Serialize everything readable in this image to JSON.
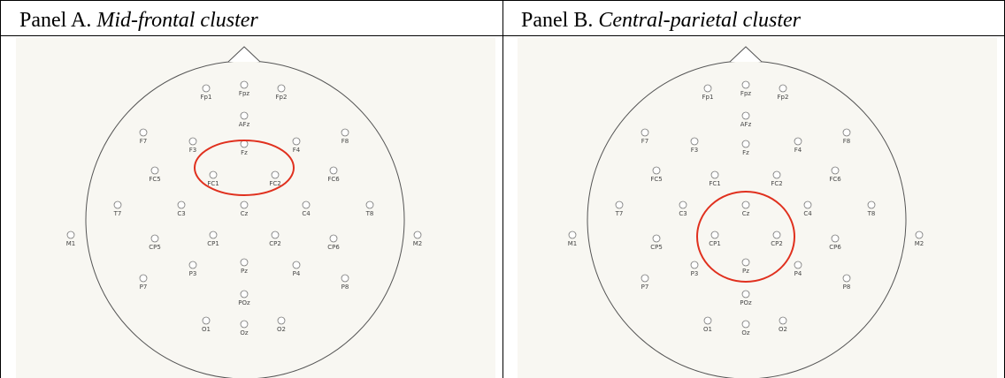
{
  "panels": [
    {
      "label": "Panel A.",
      "name": "Mid-frontal cluster"
    },
    {
      "label": "Panel B.",
      "name": "Central-parietal cluster"
    }
  ],
  "electrodes": [
    "Fp1",
    "Fpz",
    "Fp2",
    "AFz",
    "F7",
    "F3",
    "Fz",
    "F4",
    "F8",
    "FC5",
    "FC1",
    "FC2",
    "FC6",
    "T7",
    "C3",
    "Cz",
    "C4",
    "T8",
    "M1",
    "CP5",
    "CP1",
    "CP2",
    "CP6",
    "M2",
    "P3",
    "Pz",
    "P4",
    "P7",
    "P8",
    "POz",
    "O1",
    "Oz",
    "O2"
  ]
}
